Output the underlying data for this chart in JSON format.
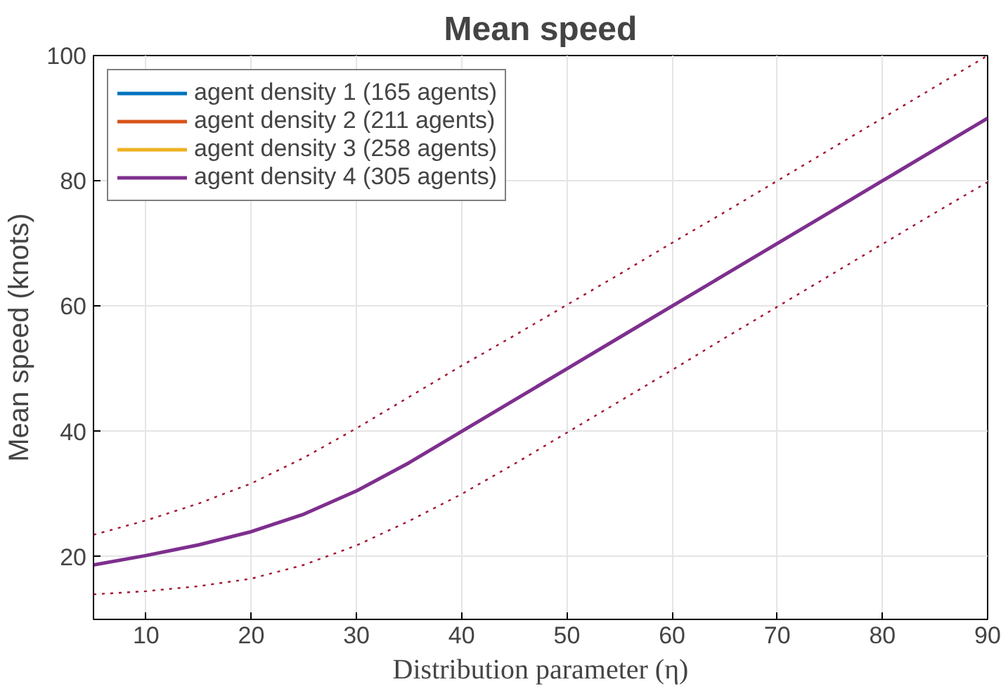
{
  "chart_data": {
    "type": "line",
    "title": "Mean speed",
    "xlabel": "Distribution parameter (η)",
    "ylabel": "Mean speed (knots)",
    "x": [
      5,
      10,
      15,
      20,
      25,
      30,
      35,
      40,
      45,
      50,
      55,
      60,
      65,
      70,
      75,
      80,
      85,
      90
    ],
    "xlim": [
      5,
      90
    ],
    "ylim": [
      10,
      100
    ],
    "xticks": [
      10,
      20,
      30,
      40,
      50,
      60,
      70,
      80,
      90
    ],
    "yticks": [
      20,
      40,
      60,
      80,
      100
    ],
    "grid": true,
    "legend": "top left",
    "line_style": "solid",
    "marker": "none",
    "series": [
      {
        "name": "agent density 1 (165 agents)",
        "color": "#0072bd",
        "values": [
          null,
          null,
          null,
          null,
          null,
          null,
          null,
          null,
          null,
          null,
          null,
          null,
          null,
          null,
          null,
          null,
          null,
          null
        ]
      },
      {
        "name": "agent density 2 (211 agents)",
        "color": "#d95319",
        "values": [
          null,
          null,
          null,
          null,
          null,
          null,
          null,
          null,
          null,
          null,
          null,
          null,
          null,
          null,
          null,
          null,
          null,
          null
        ]
      },
      {
        "name": "agent density 3 (258 agents)",
        "color": "#edb120",
        "values": [
          null,
          null,
          null,
          null,
          null,
          null,
          null,
          null,
          null,
          null,
          null,
          null,
          null,
          null,
          null,
          null,
          null,
          null
        ]
      },
      {
        "name": "agent density 4 (305 agents)",
        "color": "#7e2f8e",
        "values": [
          18.7,
          20.2,
          21.9,
          24.0,
          26.8,
          30.5,
          35.0,
          40.0,
          45.0,
          50.0,
          55.0,
          60.0,
          65.0,
          70.0,
          75.0,
          80.0,
          85.0,
          90.0
        ]
      },
      {
        "color": "#a2142f",
        "line_style": "dotted",
        "values": [
          23.5,
          25.8,
          28.5,
          31.7,
          35.8,
          40.5,
          45.5,
          50.5,
          55.3,
          60.2,
          65.1,
          70.1,
          75.0,
          80.0,
          85.0,
          90.0,
          95.0,
          100.0
        ]
      },
      {
        "color": "#a2142f",
        "line_style": "dotted",
        "values": [
          14.0,
          14.5,
          15.3,
          16.5,
          18.7,
          21.8,
          25.7,
          30.0,
          34.8,
          39.8,
          44.8,
          49.8,
          54.9,
          59.9,
          64.9,
          69.9,
          74.9,
          79.8
        ]
      }
    ]
  }
}
